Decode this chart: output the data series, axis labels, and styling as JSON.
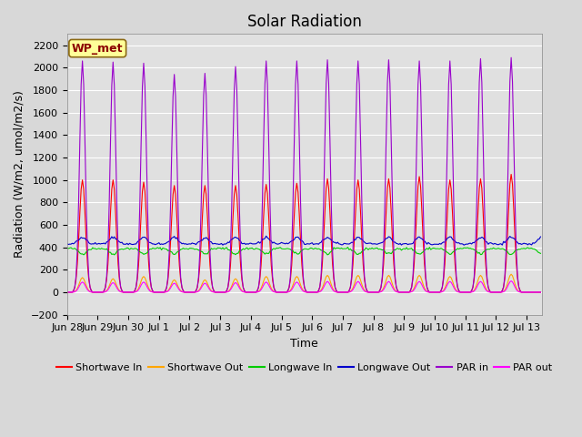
{
  "title": "Solar Radiation",
  "ylabel": "Radiation (W/m2, umol/m2/s)",
  "xlabel": "Time",
  "station_label": "WP_met",
  "ylim": [
    -200,
    2300
  ],
  "yticks": [
    -200,
    0,
    200,
    400,
    600,
    800,
    1000,
    1200,
    1400,
    1600,
    1800,
    2000,
    2200
  ],
  "colors": {
    "shortwave_in": "#ff0000",
    "shortwave_out": "#ffa500",
    "longwave_in": "#00cc00",
    "longwave_out": "#0000cc",
    "par_in": "#9900cc",
    "par_out": "#ff00ff"
  },
  "legend": [
    {
      "label": "Shortwave In",
      "color": "#ff0000"
    },
    {
      "label": "Shortwave Out",
      "color": "#ffa500"
    },
    {
      "label": "Longwave In",
      "color": "#00cc00"
    },
    {
      "label": "Longwave Out",
      "color": "#0000cc"
    },
    {
      "label": "PAR in",
      "color": "#9900cc"
    },
    {
      "label": "PAR out",
      "color": "#ff00ff"
    }
  ],
  "x_tick_labels": [
    "Jun 28",
    "Jun 29",
    "Jun 30",
    "Jul 1",
    "Jul 2",
    "Jul 3",
    "Jul 4",
    "Jul 5",
    "Jul 6",
    "Jul 7",
    "Jul 8",
    "Jul 9",
    "Jul 10",
    "Jul 11",
    "Jul 12",
    "Jul 13"
  ],
  "background_color": "#d8d8d8",
  "plot_bg_color": "#e0e0e0",
  "title_fontsize": 12,
  "label_fontsize": 9,
  "tick_fontsize": 8,
  "legend_fontsize": 8
}
